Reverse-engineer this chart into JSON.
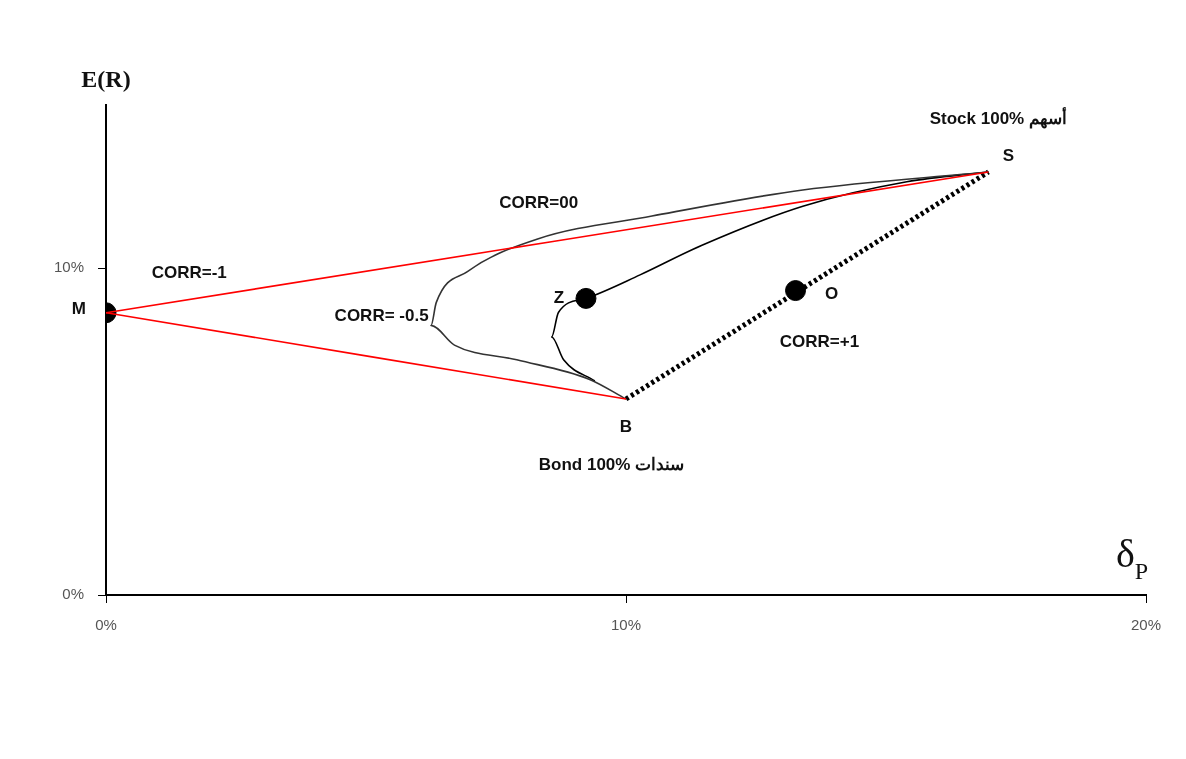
{
  "chart_data": {
    "type": "line",
    "xlabel": "δ$_{P}$",
    "ylabel": "E(R)",
    "xlim": [
      0,
      20
    ],
    "ylim": [
      0,
      15
    ],
    "xticks": [
      {
        "value": 0,
        "label": "0%"
      },
      {
        "value": 10,
        "label": "10%"
      },
      {
        "value": 20,
        "label": "20%"
      }
    ],
    "yticks": [
      {
        "value": 0,
        "label": "0%"
      },
      {
        "value": 10,
        "label": "10%"
      }
    ],
    "grid": false,
    "legend": false,
    "series": [
      {
        "color": "#ff0000",
        "x": [
          0,
          16.97
        ],
        "values": [
          8.64,
          12.95
        ]
      },
      {
        "color": "#ff0000",
        "x": [
          0,
          10
        ],
        "values": [
          8.64,
          6.0
        ]
      },
      {
        "color": "#333333",
        "x": [
          10,
          9.3,
          7.9,
          6.7,
          6.25,
          6.35,
          6.95,
          8.3,
          10.5,
          13.4,
          16.97
        ],
        "values": [
          6.0,
          6.6,
          7.2,
          7.65,
          8.25,
          8.95,
          9.9,
          10.9,
          11.6,
          12.4,
          12.95
        ]
      },
      {
        "color": "#000000",
        "x": [
          9.4,
          8.8,
          8.57,
          8.7,
          9.23,
          10.27,
          11.45,
          13.4,
          15.4,
          16.97
        ],
        "values": [
          6.55,
          7.2,
          7.9,
          8.65,
          9.08,
          9.8,
          10.7,
          11.9,
          12.65,
          12.95
        ]
      },
      {
        "color": "#000000",
        "line_style": "dotted",
        "x": [
          10,
          16.97
        ],
        "values": [
          6.0,
          12.95
        ]
      },
      {
        "type": "scatter",
        "color": "#000000",
        "marker": "circle",
        "x": [
          0,
          9.23,
          13.26
        ],
        "values": [
          8.64,
          9.08,
          9.32
        ]
      }
    ],
    "annotations": [
      {
        "text": "M",
        "x": 0,
        "y": 8.64
      },
      {
        "text": "Z",
        "x": 9.23,
        "y": 9.08
      },
      {
        "text": "O",
        "x": 13.26,
        "y": 9.32
      },
      {
        "text": "S",
        "x": 16.97,
        "y": 12.95
      },
      {
        "text": "B",
        "x": 10,
        "y": 6.0
      },
      "Stock 100% أسهم",
      "Bond 100% سندات",
      "CORR=-1",
      "CORR= -0.5",
      "CORR=00",
      "CORR=+1"
    ]
  }
}
